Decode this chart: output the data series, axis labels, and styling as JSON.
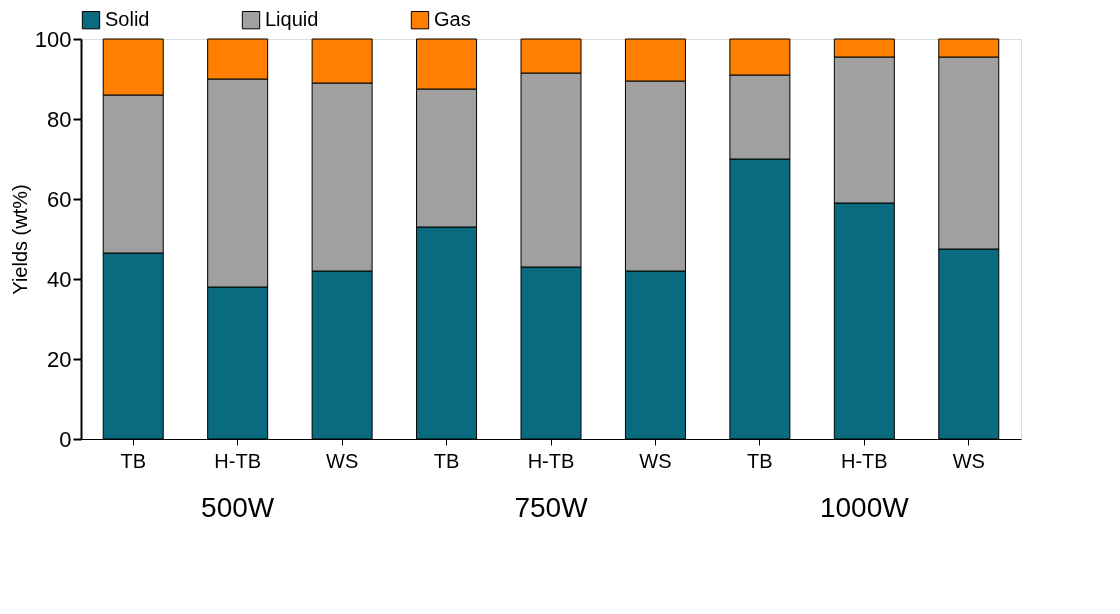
{
  "chart_data": {
    "type": "bar",
    "stacked": true,
    "ylabel": "Yields (wt%)",
    "categories": [
      "TB",
      "H-TB",
      "WS",
      "TB",
      "H-TB",
      "WS",
      "TB",
      "H-TB",
      "WS"
    ],
    "series": [
      {
        "name": "Solid",
        "color": "#0a6a80",
        "values": [
          46.5,
          38,
          42,
          53,
          43,
          42,
          70,
          59,
          47.5
        ]
      },
      {
        "name": "Liquid",
        "color": "#a0a0a0",
        "values": [
          39.5,
          52,
          47,
          34.5,
          48.5,
          47.5,
          21,
          36.5,
          48
        ]
      },
      {
        "name": "Gas",
        "color": "#ff8000",
        "values": [
          14,
          10,
          11,
          12.5,
          8.5,
          10.5,
          9,
          4.5,
          4.5
        ]
      }
    ],
    "ylim": [
      0,
      100
    ],
    "yticks": [
      0,
      20,
      40,
      60,
      80,
      100
    ],
    "annotations": [
      "500W",
      "750W",
      "1000W"
    ],
    "legend": "top",
    "grid": false
  }
}
